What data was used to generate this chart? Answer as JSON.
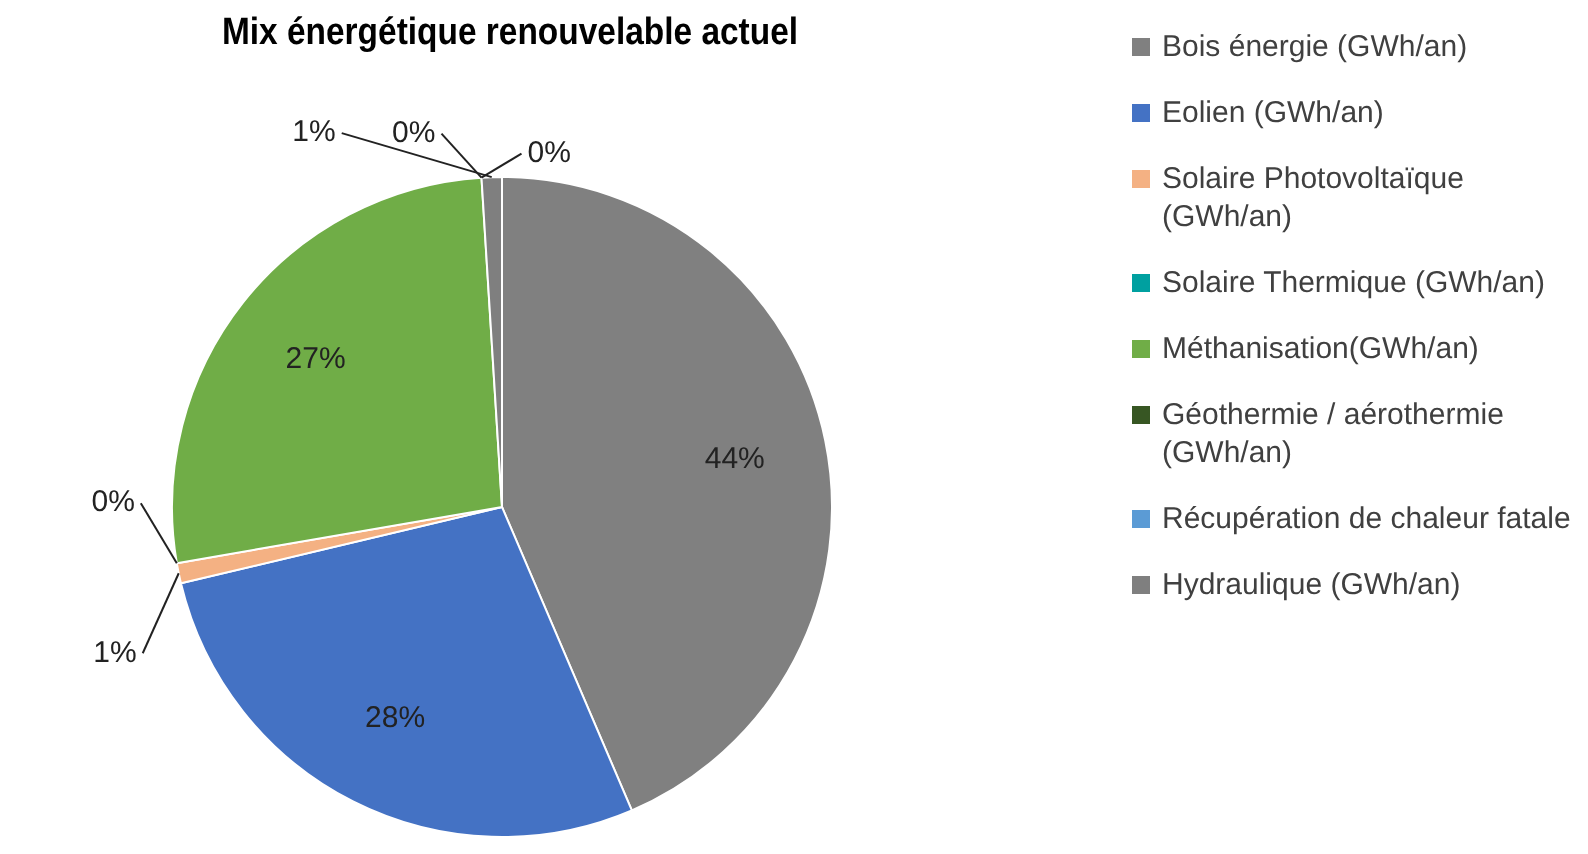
{
  "chart_data": {
    "type": "pie",
    "title": "Mix énergétique renouvelable actuel",
    "categories": [
      "Bois énergie (GWh/an)",
      "Eolien (GWh/an)",
      "Solaire Photovoltaïque (GWh/an)",
      "Solaire Thermique (GWh/an)",
      "Méthanisation(GWh/an)",
      "Géothermie / aérothermie (GWh/an)",
      "Récupération de chaleur fatale",
      "Hydraulique (GWh/an)"
    ],
    "values": [
      44,
      28,
      1,
      0,
      27,
      0,
      0,
      1
    ],
    "value_labels": [
      "44%",
      "28%",
      "1%",
      "0%",
      "27%",
      "0%",
      "0%",
      "1%"
    ],
    "colors": [
      "#808080",
      "#4472c4",
      "#f4b183",
      "#00a0a0",
      "#70ad47",
      "#375623",
      "#5b9bd5",
      "#7f7f7f"
    ],
    "legend": "right"
  }
}
